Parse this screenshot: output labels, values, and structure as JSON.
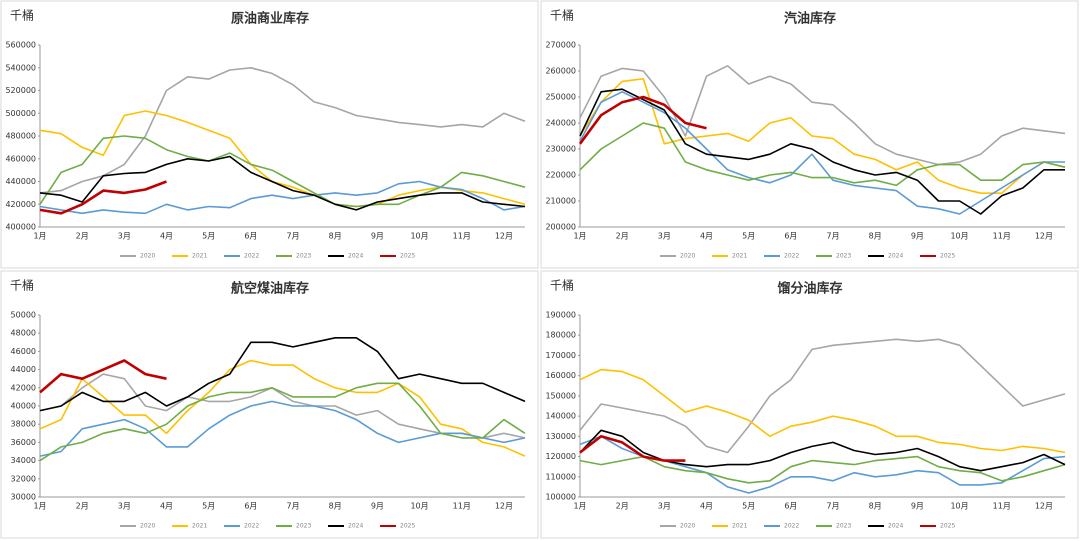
{
  "chart_data": [
    {
      "type": "line",
      "title": "原油商业库存",
      "ylabel": "千桶",
      "categories": [
        "1月",
        null,
        "2月",
        null,
        "3月",
        null,
        "4月",
        null,
        "5月",
        null,
        "6月",
        null,
        "7月",
        null,
        "8月",
        null,
        "9月",
        null,
        "10月",
        null,
        "11月",
        null,
        "12月",
        null
      ],
      "ylim": [
        400000,
        560000
      ],
      "yticks": [
        400000,
        420000,
        440000,
        460000,
        480000,
        500000,
        520000,
        540000,
        560000
      ],
      "series": [
        {
          "name": "2020",
          "color": "#a6a6a6",
          "values": [
            430000,
            432000,
            440000,
            445000,
            455000,
            480000,
            520000,
            532000,
            530000,
            538000,
            540000,
            535000,
            525000,
            510000,
            505000,
            498000,
            495000,
            492000,
            490000,
            488000,
            490000,
            488000,
            500000,
            493000
          ]
        },
        {
          "name": "2021",
          "color": "#ffc000",
          "values": [
            485000,
            482000,
            470000,
            463000,
            498000,
            502000,
            498000,
            492000,
            485000,
            478000,
            455000,
            440000,
            435000,
            428000,
            420000,
            418000,
            420000,
            428000,
            432000,
            435000,
            432000,
            430000,
            425000,
            420000
          ]
        },
        {
          "name": "2022",
          "color": "#5b9bd5",
          "values": [
            418000,
            415000,
            412000,
            415000,
            413000,
            412000,
            420000,
            415000,
            418000,
            417000,
            425000,
            428000,
            425000,
            428000,
            430000,
            428000,
            430000,
            438000,
            440000,
            435000,
            433000,
            425000,
            415000,
            418000
          ]
        },
        {
          "name": "2023",
          "color": "#70ad47",
          "values": [
            420000,
            448000,
            455000,
            478000,
            480000,
            478000,
            468000,
            462000,
            458000,
            465000,
            455000,
            450000,
            440000,
            430000,
            420000,
            418000,
            420000,
            420000,
            428000,
            435000,
            448000,
            445000,
            440000,
            435000
          ]
        },
        {
          "name": "2024",
          "color": "#000000",
          "values": [
            430000,
            428000,
            422000,
            445000,
            447000,
            448000,
            455000,
            460000,
            458000,
            462000,
            448000,
            440000,
            432000,
            428000,
            420000,
            415000,
            422000,
            425000,
            428000,
            430000,
            430000,
            422000,
            420000,
            418000
          ]
        },
        {
          "name": "2025",
          "color": "#c00000",
          "values": [
            415000,
            412000,
            420000,
            432000,
            430000,
            433000,
            440000,
            null,
            null,
            null,
            null,
            null,
            null,
            null,
            null,
            null,
            null,
            null,
            null,
            null,
            null,
            null,
            null,
            null
          ]
        }
      ]
    },
    {
      "type": "line",
      "title": "汽油库存",
      "ylabel": "千桶",
      "categories": [
        "1月",
        null,
        "2月",
        null,
        "3月",
        null,
        "4月",
        null,
        "5月",
        null,
        "6月",
        null,
        "7月",
        null,
        "8月",
        null,
        "9月",
        null,
        "10月",
        null,
        "11月",
        null,
        "12月",
        null
      ],
      "ylim": [
        200000,
        270000
      ],
      "yticks": [
        200000,
        210000,
        220000,
        230000,
        240000,
        250000,
        260000,
        270000
      ],
      "series": [
        {
          "name": "2020",
          "color": "#a6a6a6",
          "values": [
            242000,
            258000,
            261000,
            260000,
            250000,
            235000,
            258000,
            262000,
            255000,
            258000,
            255000,
            248000,
            247000,
            240000,
            232000,
            228000,
            226000,
            224000,
            225000,
            228000,
            235000,
            238000,
            237000,
            236000
          ]
        },
        {
          "name": "2021",
          "color": "#ffc000",
          "values": [
            235000,
            248000,
            256000,
            257000,
            232000,
            234000,
            235000,
            236000,
            233000,
            240000,
            242000,
            235000,
            234000,
            228000,
            226000,
            222000,
            225000,
            218000,
            215000,
            213000,
            213000,
            220000,
            225000,
            223000
          ]
        },
        {
          "name": "2022",
          "color": "#5b9bd5",
          "values": [
            233000,
            248000,
            252000,
            248000,
            244000,
            238000,
            230000,
            222000,
            219000,
            217000,
            220000,
            228000,
            218000,
            216000,
            215000,
            214000,
            208000,
            207000,
            205000,
            210000,
            215000,
            220000,
            225000,
            225000
          ]
        },
        {
          "name": "2023",
          "color": "#70ad47",
          "values": [
            222000,
            230000,
            235000,
            240000,
            238000,
            225000,
            222000,
            220000,
            218000,
            220000,
            221000,
            219000,
            219000,
            217000,
            218000,
            216000,
            222000,
            224000,
            224000,
            218000,
            218000,
            224000,
            225000,
            223000
          ]
        },
        {
          "name": "2024",
          "color": "#000000",
          "values": [
            235000,
            252000,
            253000,
            249000,
            245000,
            232000,
            228000,
            227000,
            226000,
            228000,
            232000,
            230000,
            225000,
            222000,
            220000,
            221000,
            218000,
            210000,
            210000,
            205000,
            212000,
            215000,
            222000,
            222000
          ]
        },
        {
          "name": "2025",
          "color": "#c00000",
          "values": [
            232000,
            243000,
            248000,
            250000,
            247000,
            240000,
            238000,
            null,
            null,
            null,
            null,
            null,
            null,
            null,
            null,
            null,
            null,
            null,
            null,
            null,
            null,
            null,
            null,
            null
          ]
        }
      ]
    },
    {
      "type": "line",
      "title": "航空煤油库存",
      "ylabel": "千桶",
      "categories": [
        "1月",
        null,
        "2月",
        null,
        "3月",
        null,
        "4月",
        null,
        "5月",
        null,
        "6月",
        null,
        "7月",
        null,
        "8月",
        null,
        "9月",
        null,
        "10月",
        null,
        "11月",
        null,
        "12月",
        null
      ],
      "ylim": [
        30000,
        50000
      ],
      "yticks": [
        30000,
        32000,
        34000,
        36000,
        38000,
        40000,
        42000,
        44000,
        46000,
        48000,
        50000
      ],
      "series": [
        {
          "name": "2020",
          "color": "#a6a6a6",
          "values": [
            39500,
            40000,
            42000,
            43500,
            43000,
            40000,
            39500,
            41000,
            40500,
            40500,
            41000,
            42000,
            40500,
            40000,
            40000,
            39000,
            39500,
            38000,
            37500,
            37000,
            37000,
            36500,
            37000,
            36500
          ]
        },
        {
          "name": "2021",
          "color": "#ffc000",
          "values": [
            37500,
            38500,
            43000,
            41000,
            39000,
            39000,
            37000,
            39500,
            41500,
            44000,
            45000,
            44500,
            44500,
            43000,
            42000,
            41500,
            41500,
            42500,
            41000,
            38000,
            37500,
            36000,
            35500,
            34500
          ]
        },
        {
          "name": "2022",
          "color": "#5b9bd5",
          "values": [
            34500,
            35000,
            37500,
            38000,
            38500,
            37500,
            35500,
            35500,
            37500,
            39000,
            40000,
            40500,
            40000,
            40000,
            39500,
            38500,
            37000,
            36000,
            36500,
            37000,
            37000,
            36500,
            36000,
            36500
          ]
        },
        {
          "name": "2023",
          "color": "#70ad47",
          "values": [
            34000,
            35500,
            36000,
            37000,
            37500,
            37000,
            38000,
            40000,
            41000,
            41500,
            41500,
            42000,
            41000,
            41000,
            41000,
            42000,
            42500,
            42500,
            40000,
            37000,
            36500,
            36500,
            38500,
            37000
          ]
        },
        {
          "name": "2024",
          "color": "#000000",
          "values": [
            39500,
            40000,
            41500,
            40500,
            40500,
            41500,
            40000,
            41000,
            42500,
            43500,
            47000,
            47000,
            46500,
            47000,
            47500,
            47500,
            46000,
            43000,
            43500,
            43000,
            42500,
            42500,
            41500,
            40500
          ]
        },
        {
          "name": "2025",
          "color": "#c00000",
          "values": [
            41500,
            43500,
            43000,
            44000,
            45000,
            43500,
            43000,
            null,
            null,
            null,
            null,
            null,
            null,
            null,
            null,
            null,
            null,
            null,
            null,
            null,
            null,
            null,
            null,
            null
          ]
        }
      ]
    },
    {
      "type": "line",
      "title": "馏分油库存",
      "ylabel": "千桶",
      "categories": [
        "1月",
        null,
        "2月",
        null,
        "3月",
        null,
        "4月",
        null,
        "5月",
        null,
        "6月",
        null,
        "7月",
        null,
        "8月",
        null,
        "9月",
        null,
        "10月",
        null,
        "11月",
        null,
        "12月",
        null
      ],
      "ylim": [
        100000,
        190000
      ],
      "yticks": [
        100000,
        110000,
        120000,
        130000,
        140000,
        150000,
        160000,
        170000,
        180000,
        190000
      ],
      "series": [
        {
          "name": "2020",
          "color": "#a6a6a6",
          "values": [
            133000,
            146000,
            144000,
            142000,
            140000,
            135000,
            125000,
            122000,
            135000,
            150000,
            158000,
            173000,
            175000,
            176000,
            177000,
            178000,
            177000,
            178000,
            175000,
            165000,
            155000,
            145000,
            148000,
            151000
          ]
        },
        {
          "name": "2021",
          "color": "#ffc000",
          "values": [
            158000,
            163000,
            162000,
            158000,
            150000,
            142000,
            145000,
            142000,
            138000,
            130000,
            135000,
            137000,
            140000,
            138000,
            135000,
            130000,
            130000,
            127000,
            126000,
            124000,
            123000,
            125000,
            124000,
            122000
          ]
        },
        {
          "name": "2022",
          "color": "#5b9bd5",
          "values": [
            126000,
            130000,
            124000,
            120000,
            118000,
            115000,
            112000,
            105000,
            102000,
            105000,
            110000,
            110000,
            108000,
            112000,
            110000,
            111000,
            113000,
            112000,
            106000,
            106000,
            107000,
            113000,
            119000,
            120000
          ]
        },
        {
          "name": "2023",
          "color": "#70ad47",
          "values": [
            118000,
            116000,
            118000,
            120000,
            115000,
            113000,
            112000,
            109000,
            107000,
            108000,
            115000,
            118000,
            117000,
            116000,
            118000,
            119000,
            120000,
            115000,
            113000,
            112000,
            108000,
            110000,
            113000,
            116000
          ]
        },
        {
          "name": "2024",
          "color": "#000000",
          "values": [
            122000,
            133000,
            130000,
            122000,
            118000,
            116000,
            115000,
            116000,
            116000,
            118000,
            122000,
            125000,
            127000,
            123000,
            121000,
            122000,
            124000,
            120000,
            115000,
            113000,
            115000,
            117000,
            121000,
            116000
          ]
        },
        {
          "name": "2025",
          "color": "#c00000",
          "values": [
            122000,
            130000,
            127000,
            120000,
            118000,
            118000,
            null,
            null,
            null,
            null,
            null,
            null,
            null,
            null,
            null,
            null,
            null,
            null,
            null,
            null,
            null,
            null,
            null,
            null
          ]
        }
      ]
    }
  ]
}
